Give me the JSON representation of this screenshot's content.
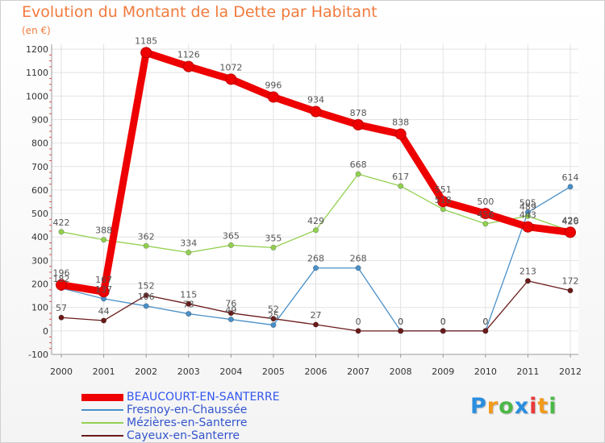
{
  "header": {
    "title": "Evolution du Montant de la Dette par Habitant",
    "subtitle": "(en €)"
  },
  "logo": {
    "text": "Proxiti",
    "colors": [
      "#2a8ee0",
      "#f29a1a",
      "#4cb848",
      "#2a8ee0",
      "#e83b3b",
      "#f29a1a",
      "#4cb848"
    ]
  },
  "chart_data": {
    "type": "line",
    "title": "Evolution du Montant de la Dette par Habitant",
    "subtitle": "(en €)",
    "x": [
      "2000",
      "2001",
      "2002",
      "2003",
      "2004",
      "2005",
      "2006",
      "2007",
      "2008",
      "2009",
      "2010",
      "2011",
      "2012"
    ],
    "ylim": [
      -100,
      1200
    ],
    "yticks": [
      -100,
      0,
      100,
      200,
      300,
      400,
      500,
      600,
      700,
      800,
      900,
      1000,
      1100,
      1200
    ],
    "grid": true,
    "legend_position": "bottom",
    "series": [
      {
        "name": "BEAUCOURT-EN-SANTERRE",
        "color": "#ee0000",
        "values": [
          196,
          167,
          1185,
          1126,
          1072,
          996,
          934,
          878,
          838,
          551,
          500,
          443,
          420
        ],
        "labels": [
          "196",
          "167",
          "1185",
          "1126",
          "1072",
          "996",
          "934",
          "878",
          "838",
          "551",
          "500",
          "443",
          "420"
        ]
      },
      {
        "name": "Fresnoy-en-Chaussée",
        "color": "#4a90c8",
        "values": [
          182,
          137,
          106,
          73,
          49,
          25,
          268,
          268,
          0,
          0,
          0,
          505,
          614
        ],
        "labels": [
          "182",
          "137",
          "106",
          "73",
          "49",
          "25",
          "268",
          "268",
          "0",
          "0",
          "0",
          "505",
          "614"
        ]
      },
      {
        "name": "Mézières-en-Santerre",
        "color": "#92d050",
        "values": [
          422,
          388,
          362,
          334,
          365,
          355,
          429,
          668,
          617,
          518,
          456,
          489,
          426
        ],
        "labels": [
          "422",
          "388",
          "362",
          "334",
          "365",
          "355",
          "429",
          "668",
          "617",
          "518",
          "456",
          "489",
          "426"
        ]
      },
      {
        "name": "Cayeux-en-Santerre",
        "color": "#6b1a1a",
        "values": [
          57,
          44,
          152,
          115,
          76,
          52,
          27,
          0,
          0,
          0,
          0,
          213,
          172
        ],
        "labels": [
          "57",
          "44",
          "152",
          "115",
          "76",
          "52",
          "27",
          "0",
          "0",
          "0",
          "0",
          "213",
          "172"
        ]
      }
    ]
  }
}
